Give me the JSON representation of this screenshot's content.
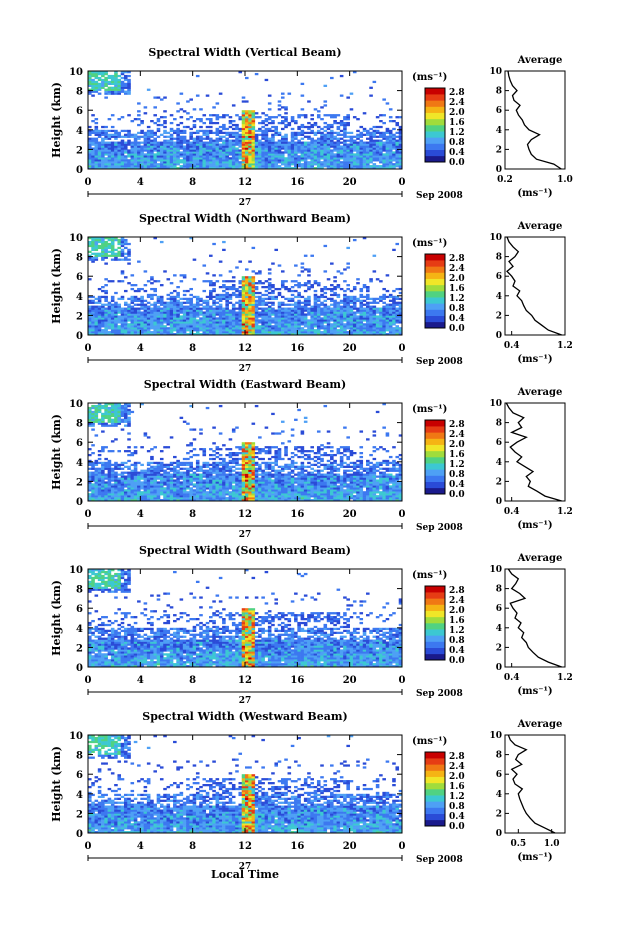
{
  "figure": {
    "xlabel": "Local Time",
    "date_label": "Sep 2008",
    "day_label": "27",
    "ylabel": "Height (km)",
    "unit_label": "(ms⁻¹)",
    "avg_title": "Average",
    "x_ticks": [
      "0",
      "4",
      "8",
      "12",
      "16",
      "20",
      "0"
    ],
    "y_ticks": [
      "0",
      "2",
      "4",
      "6",
      "8",
      "10"
    ],
    "colorbar_ticks": [
      "0.0",
      "0.4",
      "0.8",
      "1.2",
      "1.6",
      "2.0",
      "2.4",
      "2.8"
    ],
    "colorscale": [
      "#1a1a8c",
      "#2a4bd7",
      "#3c78f0",
      "#4ea0f5",
      "#3cc8d2",
      "#50d282",
      "#a0dc3c",
      "#f0e628",
      "#f5b414",
      "#f07814",
      "#e63c14",
      "#c80000"
    ]
  },
  "chart_data": [
    {
      "type": "heatmap",
      "title": "Spectral Width (Vertical Beam)",
      "x_range_hours": [
        0,
        24
      ],
      "y_range_km": [
        0,
        10
      ],
      "color_range": [
        0.0,
        2.8
      ],
      "avg_profile": {
        "xlim": [
          0.2,
          1.0
        ],
        "x_ticks": [
          "0.2",
          "1.0"
        ],
        "x_tick_values": [
          0.2,
          1.0
        ],
        "height_km": [
          0,
          0.5,
          1,
          1.5,
          2,
          2.5,
          3,
          3.5,
          4,
          4.5,
          5,
          5.5,
          6,
          6.5,
          7,
          7.5,
          8,
          8.5,
          9,
          9.5,
          10
        ],
        "values": [
          0.95,
          0.85,
          0.62,
          0.55,
          0.52,
          0.5,
          0.55,
          0.66,
          0.52,
          0.46,
          0.43,
          0.38,
          0.35,
          0.4,
          0.32,
          0.3,
          0.36,
          0.3,
          0.27,
          0.25,
          0.24
        ]
      }
    },
    {
      "type": "heatmap",
      "title": "Spectral Width (Northward Beam)",
      "x_range_hours": [
        0,
        24
      ],
      "y_range_km": [
        0,
        10
      ],
      "color_range": [
        0.0,
        2.8
      ],
      "avg_profile": {
        "xlim": [
          0.3,
          1.2
        ],
        "x_ticks": [
          "0.4",
          "1.2"
        ],
        "x_tick_values": [
          0.4,
          1.2
        ],
        "height_km": [
          0,
          0.5,
          1,
          1.5,
          2,
          2.5,
          3,
          3.5,
          4,
          4.5,
          5,
          5.5,
          6,
          6.5,
          7,
          7.5,
          8,
          8.5,
          9,
          9.5,
          10
        ],
        "values": [
          1.15,
          0.95,
          0.85,
          0.75,
          0.7,
          0.62,
          0.58,
          0.55,
          0.48,
          0.52,
          0.42,
          0.45,
          0.4,
          0.33,
          0.42,
          0.36,
          0.45,
          0.5,
          0.42,
          0.36,
          0.33
        ]
      }
    },
    {
      "type": "heatmap",
      "title": "Spectral Width (Eastward Beam)",
      "x_range_hours": [
        0,
        24
      ],
      "y_range_km": [
        0,
        10
      ],
      "color_range": [
        0.0,
        2.8
      ],
      "avg_profile": {
        "xlim": [
          0.3,
          1.2
        ],
        "x_ticks": [
          "0.4",
          "1.2"
        ],
        "x_tick_values": [
          0.4,
          1.2
        ],
        "height_km": [
          0,
          0.5,
          1,
          1.5,
          2,
          2.5,
          3,
          3.5,
          4,
          4.5,
          5,
          5.5,
          6,
          6.5,
          7,
          7.5,
          8,
          8.5,
          9,
          9.5,
          10
        ],
        "values": [
          1.15,
          0.9,
          0.78,
          0.65,
          0.68,
          0.62,
          0.72,
          0.6,
          0.48,
          0.55,
          0.45,
          0.38,
          0.48,
          0.62,
          0.4,
          0.55,
          0.5,
          0.58,
          0.42,
          0.36,
          0.32
        ]
      }
    },
    {
      "type": "heatmap",
      "title": "Spectral Width (Southward Beam)",
      "x_range_hours": [
        0,
        24
      ],
      "y_range_km": [
        0,
        10
      ],
      "color_range": [
        0.0,
        2.8
      ],
      "avg_profile": {
        "xlim": [
          0.3,
          1.2
        ],
        "x_ticks": [
          "0.4",
          "1.2"
        ],
        "x_tick_values": [
          0.4,
          1.2
        ],
        "height_km": [
          0,
          0.5,
          1,
          1.5,
          2,
          2.5,
          3,
          3.5,
          4,
          4.5,
          5,
          5.5,
          6,
          6.5,
          7,
          7.5,
          8,
          8.5,
          9,
          9.5,
          10
        ],
        "values": [
          1.15,
          0.95,
          0.8,
          0.72,
          0.65,
          0.62,
          0.55,
          0.58,
          0.5,
          0.54,
          0.45,
          0.48,
          0.42,
          0.38,
          0.6,
          0.52,
          0.4,
          0.46,
          0.5,
          0.4,
          0.35
        ]
      }
    },
    {
      "type": "heatmap",
      "title": "Spectral Width (Westward Beam)",
      "x_range_hours": [
        0,
        24
      ],
      "y_range_km": [
        0,
        10
      ],
      "color_range": [
        0.0,
        2.8
      ],
      "avg_profile": {
        "xlim": [
          0.3,
          1.2
        ],
        "x_ticks": [
          "0.5",
          "1.0"
        ],
        "x_tick_values": [
          0.5,
          1.0
        ],
        "height_km": [
          0,
          0.5,
          1,
          1.5,
          2,
          2.5,
          3,
          3.5,
          4,
          4.5,
          5,
          5.5,
          6,
          6.5,
          7,
          7.5,
          8,
          8.5,
          9,
          9.5,
          10
        ],
        "values": [
          1.05,
          0.9,
          0.75,
          0.68,
          0.62,
          0.58,
          0.55,
          0.52,
          0.5,
          0.56,
          0.45,
          0.42,
          0.48,
          0.4,
          0.55,
          0.46,
          0.5,
          0.62,
          0.45,
          0.38,
          0.35
        ]
      }
    }
  ]
}
